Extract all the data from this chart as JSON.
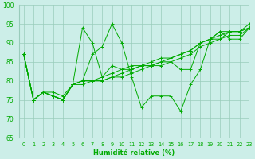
{
  "xlabel": "Humidité relative (%)",
  "ylim": [
    65,
    100
  ],
  "xlim": [
    -0.5,
    23
  ],
  "yticks": [
    65,
    70,
    75,
    80,
    85,
    90,
    95,
    100
  ],
  "xticks": [
    0,
    1,
    2,
    3,
    4,
    5,
    6,
    7,
    8,
    9,
    10,
    11,
    12,
    13,
    14,
    15,
    16,
    17,
    18,
    19,
    20,
    21,
    22,
    23
  ],
  "bg_color": "#cceee8",
  "grid_color": "#99ccbb",
  "line_color": "#00aa00",
  "series": [
    [
      87,
      75,
      77,
      77,
      76,
      79,
      80,
      87,
      89,
      95,
      90,
      81,
      73,
      76,
      76,
      76,
      72,
      79,
      83,
      91,
      91,
      93,
      93,
      95
    ],
    [
      87,
      75,
      77,
      76,
      75,
      79,
      80,
      80,
      81,
      82,
      83,
      84,
      84,
      85,
      86,
      86,
      87,
      88,
      90,
      91,
      92,
      93,
      93,
      94
    ],
    [
      87,
      75,
      77,
      76,
      75,
      79,
      79,
      80,
      80,
      81,
      81,
      82,
      83,
      84,
      84,
      85,
      86,
      87,
      89,
      90,
      91,
      92,
      92,
      94
    ],
    [
      87,
      75,
      77,
      76,
      75,
      79,
      80,
      80,
      80,
      81,
      82,
      83,
      84,
      84,
      85,
      86,
      87,
      88,
      90,
      91,
      93,
      93,
      93,
      94
    ],
    [
      87,
      75,
      77,
      76,
      75,
      79,
      94,
      90,
      81,
      84,
      83,
      83,
      84,
      84,
      85,
      85,
      83,
      83,
      90,
      91,
      93,
      91,
      91,
      94
    ]
  ]
}
